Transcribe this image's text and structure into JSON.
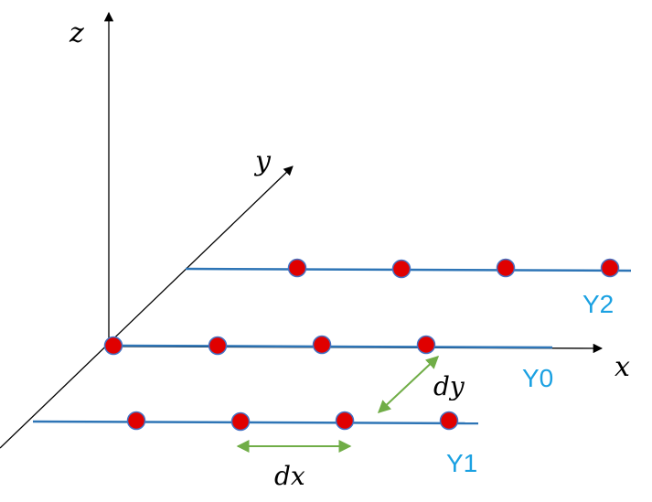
{
  "axes": {
    "z_label": "z",
    "y_label": "y",
    "x_label": "x"
  },
  "lines": {
    "y2_label": "Y2",
    "y0_label": "Y0",
    "y1_label": "Y1"
  },
  "spacing": {
    "dx_label": "dx",
    "dy_label": "dy"
  },
  "colors": {
    "axis": "#000000",
    "line": "#2E75B6",
    "line_label": "#1BA1E2",
    "point_fill": "#E00000",
    "point_stroke": "#4472C4",
    "arrow": "#70AD47"
  }
}
